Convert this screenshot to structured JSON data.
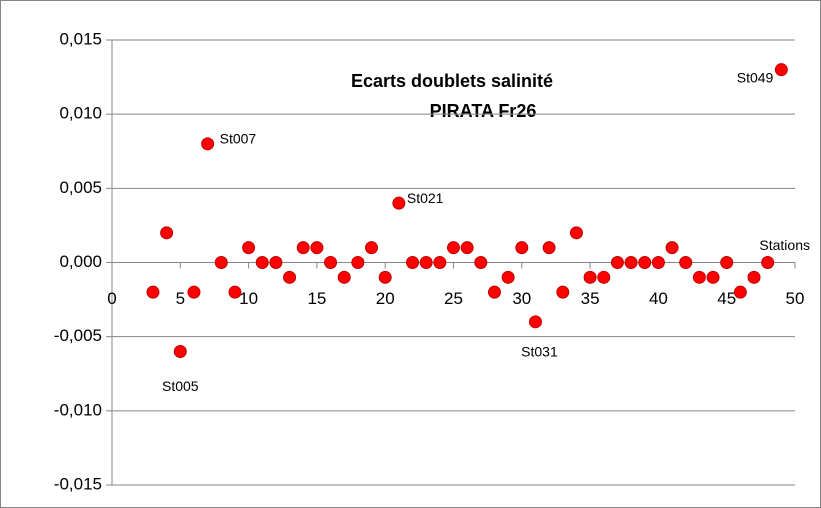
{
  "chart_data": {
    "type": "scatter",
    "title": "Ecarts doublets salinité",
    "subtitle": "PIRATA Fr26",
    "x_label": "Stations",
    "x": [
      3,
      4,
      5,
      6,
      7,
      8,
      9,
      10,
      11,
      12,
      13,
      14,
      15,
      16,
      17,
      18,
      19,
      20,
      21,
      22,
      23,
      24,
      25,
      26,
      27,
      28,
      29,
      30,
      31,
      32,
      33,
      34,
      35,
      36,
      37,
      38,
      39,
      40,
      41,
      42,
      43,
      44,
      45,
      46,
      47,
      48,
      49
    ],
    "values": [
      -0.002,
      0.002,
      -0.006,
      -0.002,
      0.008,
      0,
      -0.002,
      0.001,
      0,
      0,
      -0.001,
      0.001,
      0.001,
      0,
      -0.001,
      0,
      0.001,
      -0.001,
      0.004,
      0,
      0,
      0,
      0.001,
      0.001,
      0,
      -0.002,
      -0.001,
      0.001,
      -0.004,
      0.001,
      -0.002,
      0.002,
      -0.001,
      -0.001,
      0,
      0,
      0,
      0,
      0.001,
      0,
      -0.001,
      -0.001,
      0,
      -0.002,
      -0.001,
      0,
      0.013
    ],
    "color": "#ff0000",
    "xlim": [
      0,
      50
    ],
    "xticks": [
      0,
      5,
      10,
      15,
      20,
      25,
      30,
      35,
      40,
      45,
      50
    ],
    "ylim": [
      -0.015,
      0.015
    ],
    "yticks": [
      {
        "value": -0.015,
        "label": "-0,015"
      },
      {
        "value": -0.01,
        "label": "-0,010"
      },
      {
        "value": -0.005,
        "label": "-0,005"
      },
      {
        "value": 0,
        "label": "0,000"
      },
      {
        "value": 0.005,
        "label": "0,005"
      },
      {
        "value": 0.01,
        "label": "0,010"
      },
      {
        "value": 0.015,
        "label": "0,015"
      }
    ],
    "grid": true,
    "annotations": [
      {
        "text": "St005",
        "x": 5,
        "y": -0.006
      },
      {
        "text": "St007",
        "x": 7,
        "y": 0.008
      },
      {
        "text": "St021",
        "x": 21,
        "y": 0.004
      },
      {
        "text": "St031",
        "x": 31,
        "y": -0.004
      },
      {
        "text": "St049",
        "x": 49,
        "y": 0.013
      }
    ]
  }
}
